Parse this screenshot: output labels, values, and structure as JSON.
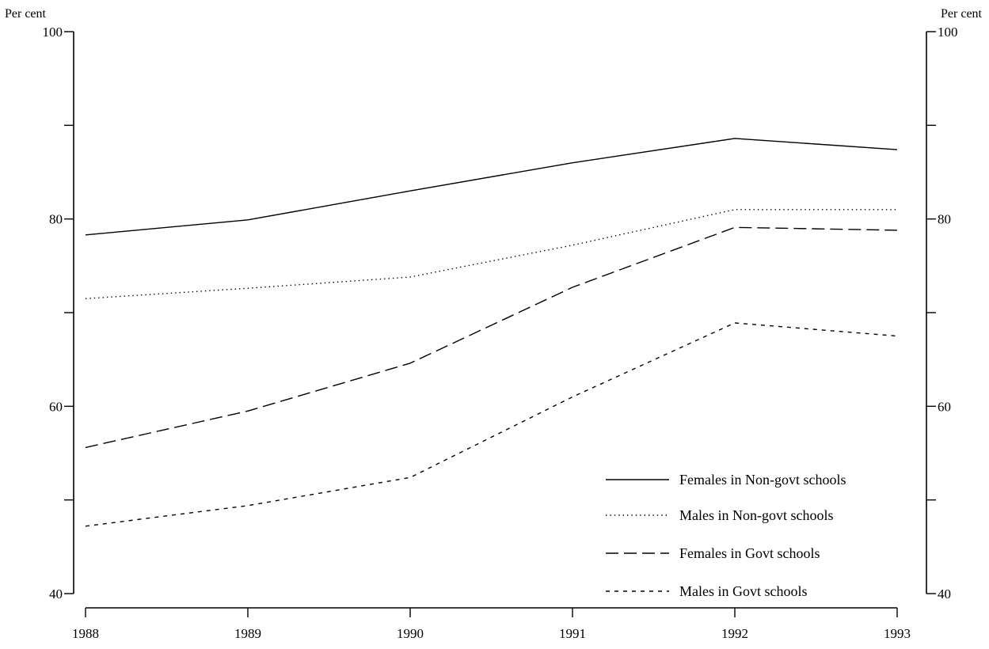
{
  "chart_data": {
    "type": "line",
    "x": [
      1988,
      1989,
      1990,
      1991,
      1992,
      1993
    ],
    "xlim": [
      1988,
      1993
    ],
    "ylim": [
      40,
      100
    ],
    "y_ticks_labeled": [
      40,
      60,
      80,
      100
    ],
    "y_ticks_minor": [
      50,
      70,
      90
    ],
    "ylabel_left": "Per cent",
    "ylabel_right": "Per cent",
    "legend_position": "bottom-right",
    "grid": false,
    "series": [
      {
        "name": "Females in Non-govt schools",
        "style": "solid",
        "values": [
          78.3,
          79.9,
          83.0,
          86.0,
          88.6,
          87.4
        ]
      },
      {
        "name": "Males in Non-govt schools",
        "style": "dotted",
        "values": [
          71.5,
          72.6,
          73.8,
          77.2,
          81.0,
          81.0
        ]
      },
      {
        "name": "Females in Govt schools",
        "style": "dashed",
        "values": [
          55.6,
          59.5,
          64.6,
          72.7,
          79.1,
          78.8
        ]
      },
      {
        "name": "Males in Govt schools",
        "style": "short-dashed",
        "values": [
          47.2,
          49.4,
          52.4,
          61.0,
          68.9,
          67.5
        ]
      }
    ]
  }
}
